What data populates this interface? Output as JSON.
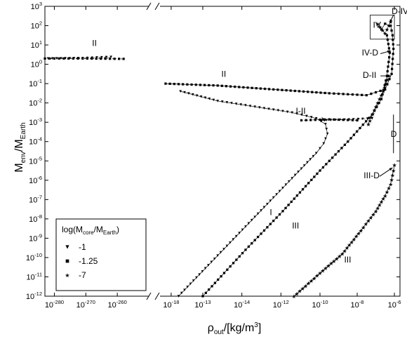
{
  "chart_data": {
    "type": "scatter",
    "xlabel": {
      "base": "ρ",
      "sub": "out",
      "rest": "/[kg/m",
      "sup": "3",
      "end": "]"
    },
    "ylabel": {
      "base": "M",
      "sub1": "env",
      "mid": "/M",
      "sub2": "Earth"
    },
    "x_scale": "log-broken",
    "y_scale": "log",
    "ylim": [
      -12,
      3
    ],
    "x_break": {
      "left_range": [
        -283,
        -250
      ],
      "right_range": [
        -18.6,
        -5.7
      ]
    },
    "x_ticks_left": [
      {
        "exp": -280,
        "mantissa": "10"
      },
      {
        "exp": -270,
        "mantissa": "10"
      },
      {
        "exp": -260,
        "mantissa": "10"
      }
    ],
    "x_ticks_right": [
      {
        "exp": -18,
        "mantissa": "10"
      },
      {
        "exp": -13,
        "mantissa": "10"
      },
      {
        "exp": -14,
        "mantissa": "10"
      },
      {
        "exp": -12,
        "mantissa": "10"
      },
      {
        "exp": -10,
        "mantissa": "10"
      },
      {
        "exp": -8,
        "mantissa": "10"
      },
      {
        "exp": -6,
        "mantissa": "10"
      }
    ],
    "y_ticks": [
      {
        "exp": -12,
        "mantissa": "10"
      },
      {
        "exp": -11,
        "mantissa": "10"
      },
      {
        "exp": -10,
        "mantissa": "10"
      },
      {
        "exp": -9,
        "mantissa": "10"
      },
      {
        "exp": -8,
        "mantissa": "10"
      },
      {
        "exp": -7,
        "mantissa": "10"
      },
      {
        "exp": -6,
        "mantissa": "10"
      },
      {
        "exp": -5,
        "mantissa": "10"
      },
      {
        "exp": -4,
        "mantissa": "10"
      },
      {
        "exp": -3,
        "mantissa": "10"
      },
      {
        "exp": -2,
        "mantissa": "10"
      },
      {
        "exp": -1,
        "mantissa": "10"
      },
      {
        "exp": 0,
        "mantissa": "10"
      },
      {
        "exp": 1,
        "mantissa": "10"
      },
      {
        "exp": 2,
        "mantissa": "10"
      },
      {
        "exp": 3,
        "mantissa": "10"
      }
    ],
    "legend": {
      "title": {
        "base": "log(M",
        "sub1": "core",
        "mid": "/M",
        "sub2": "Earth",
        "end": ")"
      },
      "placement": "bottom-left",
      "entries": [
        {
          "label": "-1",
          "marker": "triangle-down"
        },
        {
          "label": "-1.25",
          "marker": "square"
        },
        {
          "label": "-7",
          "marker": "star"
        }
      ]
    },
    "series": [
      {
        "marker": "triangle-down",
        "segments": [
          {
            "points": [
              [
                -17.6,
                -12
              ],
              [
                -16,
                -10.4
              ],
              [
                -14,
                -8.4
              ],
              [
                -12,
                -6.4
              ],
              [
                -11,
                -5.4
              ],
              [
                -10.2,
                -4.6
              ],
              [
                -9.8,
                -4.1
              ],
              [
                -9.6,
                -3.6
              ],
              [
                -9.7,
                -3.1
              ],
              [
                -10.2,
                -2.8
              ],
              [
                -11.5,
                -2.5
              ],
              [
                -13.5,
                -2.2
              ],
              [
                -15.5,
                -1.9
              ],
              [
                -17.5,
                -1.4
              ]
            ]
          },
          {
            "points": [
              [
                -9.9,
                -2.9
              ],
              [
                -8.2,
                -2.85
              ],
              [
                -7.2,
                -2.8
              ]
            ]
          },
          {
            "points": [
              [
                -282,
                0.3
              ],
              [
                -271,
                0.32
              ],
              [
                -262,
                0.38
              ]
            ]
          }
        ]
      },
      {
        "marker": "square",
        "segments": [
          {
            "points": [
              [
                -16.3,
                -12
              ],
              [
                -14,
                -9.6
              ],
              [
                -12,
                -7.6
              ],
              [
                -10,
                -5.5
              ],
              [
                -8.5,
                -4
              ],
              [
                -7.2,
                -2.6
              ],
              [
                -6.7,
                -1.8
              ],
              [
                -6.4,
                -0.6
              ],
              [
                -6.25,
                0.6
              ],
              [
                -6.4,
                1.5
              ],
              [
                -6.7,
                1.8
              ],
              [
                -6.5,
                2.1
              ],
              [
                -6.2,
                2.0
              ],
              [
                -6.1,
                1.5
              ],
              [
                -6.05,
                0.8
              ],
              [
                -6.15,
                -0.5
              ],
              [
                -6.5,
                -1.3
              ],
              [
                -7.5,
                -1.6
              ],
              [
                -9.5,
                -1.5
              ],
              [
                -12.5,
                -1.3
              ],
              [
                -15.5,
                -1.1
              ],
              [
                -18.3,
                -1.0
              ]
            ]
          },
          {
            "points": [
              [
                -283,
                0.3
              ],
              [
                -271,
                0.3
              ],
              [
                -258,
                0.28
              ]
            ]
          },
          {
            "points": [
              [
                -11,
                -2.9
              ],
              [
                -9.5,
                -2.85
              ],
              [
                -8,
                -2.9
              ]
            ]
          }
        ]
      },
      {
        "marker": "star",
        "segments": [
          {
            "points": [
              [
                -11.4,
                -12
              ],
              [
                -10,
                -10.8
              ],
              [
                -8.8,
                -9.8
              ],
              [
                -7.8,
                -8.6
              ],
              [
                -7,
                -7.6
              ],
              [
                -6.5,
                -6.8
              ],
              [
                -6.2,
                -6.2
              ],
              [
                -6.05,
                -5.5
              ],
              [
                -6.0,
                -5.2
              ]
            ]
          },
          {
            "points": [
              [
                -6.3,
                -0.6
              ],
              [
                -6.6,
                -1.4
              ],
              [
                -7.0,
                -2.2
              ],
              [
                -7.4,
                -3.1
              ]
            ]
          },
          {
            "points": [
              [
                -6.9,
                2.1
              ],
              [
                -6.5,
                1.6
              ],
              [
                -6.2,
                2.2
              ]
            ]
          }
        ]
      }
    ],
    "annotations": [
      {
        "text": "II",
        "x": -268,
        "y": 0.95
      },
      {
        "text": "II",
        "x": -15.3,
        "y": -0.65
      },
      {
        "text": "I-II",
        "x": -11.3,
        "y": -2.55
      },
      {
        "text": "I",
        "x": -12.7,
        "y": -7.8
      },
      {
        "text": "III",
        "x": -11.5,
        "y": -8.5
      },
      {
        "text": "III",
        "x": -8.7,
        "y": -10.25
      },
      {
        "text": "IV",
        "x": -7.15,
        "y": 1.9
      },
      {
        "text": "D-IV",
        "x": -6.15,
        "y": 2.6
      },
      {
        "text": "IV-D",
        "x": -7.75,
        "y": 0.45
      },
      {
        "text": "D-II",
        "x": -7.7,
        "y": -0.7
      },
      {
        "text": "D",
        "x": -6.2,
        "y": -3.75
      },
      {
        "text": "III-D",
        "x": -7.65,
        "y": -5.9
      }
    ]
  }
}
